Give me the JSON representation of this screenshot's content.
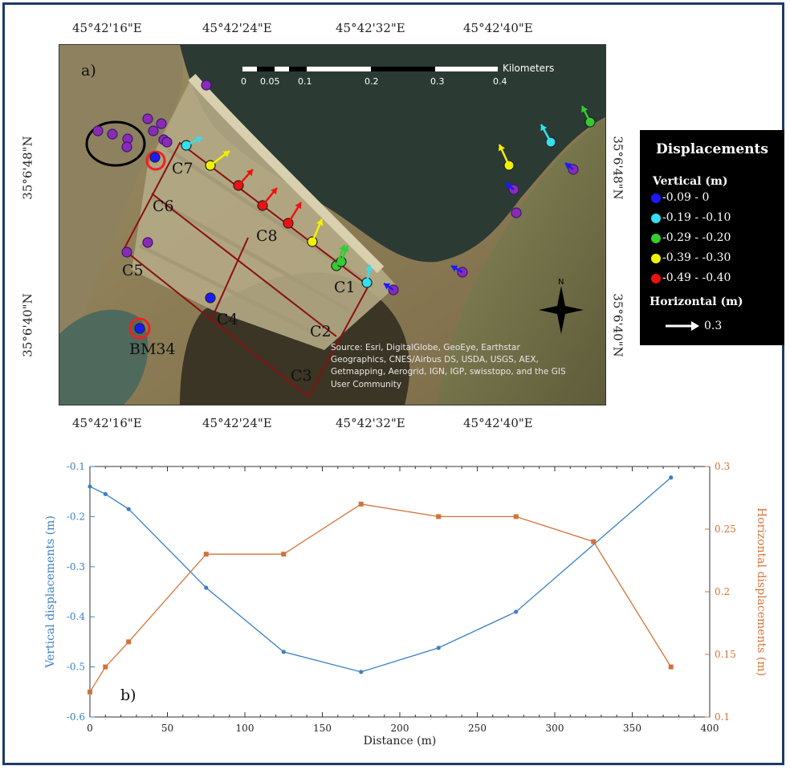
{
  "panel_a": {
    "label": "a)",
    "top_ticks": [
      "45°42'16\"E",
      "45°42'24\"E",
      "45°42'32\"E",
      "45°42'40\"E"
    ],
    "bottom_ticks": [
      "45°42'16\"E",
      "45°42'24\"E",
      "45°42'32\"E",
      "45°42'40\"E"
    ],
    "left_ticks": [
      "35°6'48\"N",
      "35°6'40\"N"
    ],
    "right_ticks": [
      "35°6'48\"N",
      "35°6'40\"N"
    ],
    "scalebar": {
      "unit": "Kilometers",
      "labels": [
        "0",
        "0.05",
        "0.1",
        "0.2",
        "0.3",
        "0.4"
      ]
    },
    "cells": [
      "C1",
      "C2",
      "C3",
      "C4",
      "C5",
      "C6",
      "C7",
      "C8"
    ],
    "benchmark": "BM34",
    "north": "N",
    "attribution": "Source: Esri, DigitalGlobe, GeoEye, Earthstar Geographics, CNES/Airbus DS, USDA, USGS, AEX, Getmapping, Aerogrid, IGN, IGP, swisstopo, and the GIS User Community"
  },
  "legend": {
    "title": "Displacements",
    "vertical_title": "Vertical (m)",
    "classes": [
      {
        "label": "-0.09 -  0",
        "color": "#1a1aff"
      },
      {
        "label": "-0.19 -  -0.10",
        "color": "#33e0ee"
      },
      {
        "label": "-0.29 -  -0.20",
        "color": "#33cc33"
      },
      {
        "label": "-0.39 -  -0.30",
        "color": "#f2f200"
      },
      {
        "label": "-0.49 -  -0.40",
        "color": "#ee1111"
      }
    ],
    "horizontal_title": "Horizontal (m)",
    "horizontal_value": "0.3"
  },
  "chart_data": {
    "type": "line",
    "panel_label": "b)",
    "xlabel": "Distance (m)",
    "ylabel": "Vertical displacements (m)",
    "y2label": "Horizontal displacements (m)",
    "xlim": [
      0,
      400
    ],
    "ylim": [
      -0.6,
      -0.1
    ],
    "y2lim": [
      0.1,
      0.3
    ],
    "xticks": [
      "0",
      "50",
      "100",
      "150",
      "200",
      "250",
      "300",
      "350",
      "400"
    ],
    "yticks": [
      "-0.1",
      "-0.2",
      "-0.3",
      "-0.4",
      "-0.5",
      "-0.6"
    ],
    "y2ticks": [
      "0.3",
      "0.25",
      "0.2",
      "0.15",
      "0.1"
    ],
    "series": [
      {
        "axis": "left",
        "color": "#3b7fc4",
        "x": [
          0,
          10,
          25,
          75,
          125,
          175,
          225,
          275,
          375
        ],
        "y": [
          -0.14,
          -0.155,
          -0.185,
          -0.342,
          -0.47,
          -0.51,
          -0.462,
          -0.39,
          -0.122
        ]
      },
      {
        "axis": "right",
        "color": "#d2733a",
        "x": [
          0,
          10,
          25,
          75,
          125,
          175,
          225,
          275,
          325,
          375
        ],
        "y": [
          0.12,
          0.14,
          0.16,
          0.23,
          0.23,
          0.27,
          0.26,
          0.26,
          0.24,
          0.14
        ]
      }
    ]
  }
}
